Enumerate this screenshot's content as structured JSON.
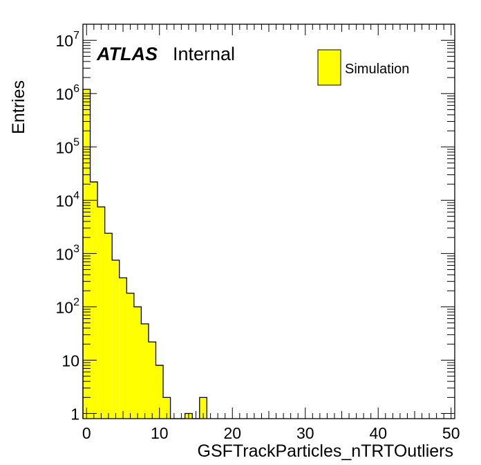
{
  "chart_data": {
    "type": "bar",
    "histogram": true,
    "xlabel": "GSFTrackParticles_nTRTOutliers",
    "ylabel": "Entries",
    "xlim": [
      -0.5,
      50.5
    ],
    "ylim": [
      0.8,
      20000000
    ],
    "yscale": "log",
    "bin_width": 1,
    "x_ticks": [
      0,
      10,
      20,
      30,
      40,
      50
    ],
    "x_tick_labels": [
      "0",
      "10",
      "20",
      "30",
      "40",
      "50"
    ],
    "y_ticks": [
      {
        "value": 1,
        "base": "1",
        "exp": ""
      },
      {
        "value": 10,
        "base": "10",
        "exp": ""
      },
      {
        "value": 100,
        "base": "10",
        "exp": "2"
      },
      {
        "value": 1000,
        "base": "10",
        "exp": "3"
      },
      {
        "value": 10000,
        "base": "10",
        "exp": "4"
      },
      {
        "value": 100000,
        "base": "10",
        "exp": "5"
      },
      {
        "value": 1000000,
        "base": "10",
        "exp": "6"
      },
      {
        "value": 10000000,
        "base": "10",
        "exp": "7"
      }
    ],
    "bins": [
      {
        "x": 0,
        "y": 1200000
      },
      {
        "x": 1,
        "y": 22000
      },
      {
        "x": 2,
        "y": 7500
      },
      {
        "x": 3,
        "y": 2400
      },
      {
        "x": 4,
        "y": 750
      },
      {
        "x": 5,
        "y": 350
      },
      {
        "x": 6,
        "y": 180
      },
      {
        "x": 7,
        "y": 100
      },
      {
        "x": 8,
        "y": 48
      },
      {
        "x": 9,
        "y": 22
      },
      {
        "x": 10,
        "y": 8
      },
      {
        "x": 11,
        "y": 2
      },
      {
        "x": 12,
        "y": 0
      },
      {
        "x": 13,
        "y": 0
      },
      {
        "x": 14,
        "y": 1
      },
      {
        "x": 15,
        "y": 0
      },
      {
        "x": 16,
        "y": 2
      }
    ],
    "fill_color": "#ffff00",
    "line_color": "#000000",
    "legend": {
      "entry": "Simulation",
      "placement": "top-right"
    },
    "label": {
      "atlas": "ATLAS",
      "status": "Internal"
    }
  }
}
